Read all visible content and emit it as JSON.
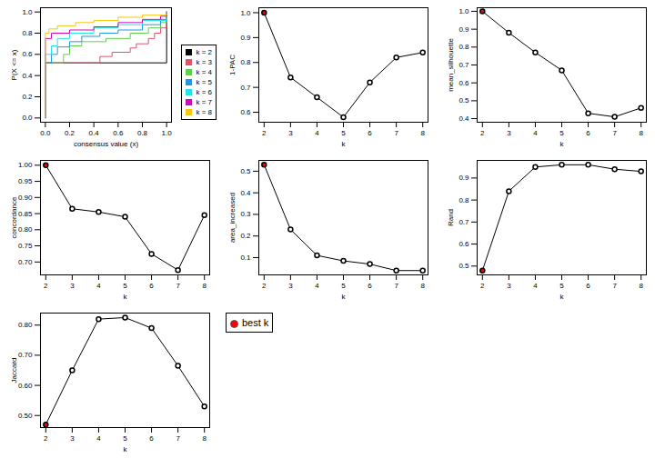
{
  "chart_data": [
    {
      "type": "step",
      "xlabel": "consensus value (x)",
      "ylabel": "P(X <= x)",
      "xlim": [
        -0.04,
        1.04
      ],
      "ylim": [
        -0.04,
        1.04
      ],
      "xticks": [
        {
          "value": 0,
          "label": "0.0"
        },
        {
          "value": 0.2,
          "label": "0.2"
        },
        {
          "value": 0.4,
          "label": "0.4"
        },
        {
          "value": 0.6,
          "label": "0.6"
        },
        {
          "value": 0.8,
          "label": "0.8"
        },
        {
          "value": 1,
          "label": "1.0"
        }
      ],
      "yticks": [
        {
          "value": 0,
          "label": "0.0"
        },
        {
          "value": 0.2,
          "label": "0.2"
        },
        {
          "value": 0.4,
          "label": "0.4"
        },
        {
          "value": 0.6,
          "label": "0.6"
        },
        {
          "value": 0.8,
          "label": "0.8"
        },
        {
          "value": 1,
          "label": "1.0"
        }
      ],
      "legend": "right",
      "series": [
        {
          "name": "k = 2",
          "color": "#000000",
          "x": [
            0,
            0,
            1,
            1
          ],
          "values": [
            0,
            0.52,
            0.52,
            1
          ]
        },
        {
          "name": "k = 3",
          "color": "#DF536B",
          "x": [
            0,
            0,
            0.45,
            0.55,
            0.7,
            0.75,
            0.85,
            0.9,
            0.95,
            1,
            1
          ],
          "values": [
            0,
            0.52,
            0.58,
            0.62,
            0.66,
            0.7,
            0.75,
            0.8,
            0.85,
            0.9,
            1
          ]
        },
        {
          "name": "k = 4",
          "color": "#61D04F",
          "x": [
            0,
            0,
            0.15,
            0.2,
            0.3,
            0.5,
            0.7,
            0.85,
            0.95,
            1
          ],
          "values": [
            0,
            0.52,
            0.6,
            0.68,
            0.72,
            0.75,
            0.8,
            0.85,
            0.9,
            1
          ]
        },
        {
          "name": "k = 5",
          "color": "#2297E6",
          "x": [
            0,
            0,
            0.05,
            0.1,
            0.2,
            0.3,
            0.45,
            0.6,
            0.8,
            0.95,
            1
          ],
          "values": [
            0,
            0.52,
            0.6,
            0.67,
            0.72,
            0.77,
            0.8,
            0.83,
            0.88,
            0.93,
            1
          ]
        },
        {
          "name": "k = 6",
          "color": "#28E2E5",
          "x": [
            0,
            0,
            0.05,
            0.1,
            0.2,
            0.4,
            0.6,
            0.8,
            1
          ],
          "values": [
            0,
            0.6,
            0.68,
            0.75,
            0.8,
            0.85,
            0.88,
            0.92,
            1
          ]
        },
        {
          "name": "k = 7",
          "color": "#CD0BBC",
          "x": [
            0,
            0,
            0.05,
            0.2,
            0.4,
            0.6,
            0.8,
            0.95,
            1
          ],
          "values": [
            0,
            0.75,
            0.8,
            0.83,
            0.86,
            0.9,
            0.93,
            0.96,
            1
          ]
        },
        {
          "name": "k = 8",
          "color": "#F5C710",
          "x": [
            0,
            0,
            0.03,
            0.1,
            0.25,
            0.4,
            0.6,
            0.8,
            1
          ],
          "values": [
            0,
            0.8,
            0.84,
            0.87,
            0.9,
            0.92,
            0.95,
            0.97,
            1
          ]
        }
      ]
    },
    {
      "type": "line",
      "xlabel": "k",
      "ylabel": "1-PAC",
      "marker": "circle",
      "color": "#000000",
      "x": [
        2,
        3,
        4,
        5,
        6,
        7,
        8
      ],
      "values": [
        1.0,
        0.74,
        0.66,
        0.58,
        0.72,
        0.82,
        0.84
      ],
      "colors": [
        "#FF0000",
        "#FFFFFF",
        "#FFFFFF",
        "#FFFFFF",
        "#FFFFFF",
        "#FFFFFF",
        "#FFFFFF"
      ],
      "xlim": [
        1.8,
        8.2
      ],
      "xticks": [
        2,
        3,
        4,
        5,
        6,
        7,
        8
      ],
      "ylim": [
        0.56,
        1.02
      ],
      "yticks": [
        0.6,
        0.7,
        0.8,
        0.9,
        {
          "value": 1,
          "label": "1.0"
        }
      ]
    },
    {
      "type": "line",
      "xlabel": "k",
      "ylabel": "mean_silhouette",
      "marker": "circle",
      "color": "#000000",
      "x": [
        2,
        3,
        4,
        5,
        6,
        7,
        8
      ],
      "values": [
        1.0,
        0.88,
        0.77,
        0.67,
        0.43,
        0.41,
        0.46
      ],
      "colors": [
        "#FF0000",
        "#FFFFFF",
        "#FFFFFF",
        "#FFFFFF",
        "#FFFFFF",
        "#FFFFFF",
        "#FFFFFF"
      ],
      "xlim": [
        1.8,
        8.2
      ],
      "xticks": [
        2,
        3,
        4,
        5,
        6,
        7,
        8
      ],
      "ylim": [
        0.38,
        1.02
      ],
      "yticks": [
        0.4,
        0.5,
        0.6,
        0.7,
        0.8,
        0.9,
        {
          "value": 1,
          "label": "1.0"
        }
      ]
    },
    {
      "type": "line",
      "xlabel": "k",
      "ylabel": "concordance",
      "marker": "circle",
      "color": "#000000",
      "x": [
        2,
        3,
        4,
        5,
        6,
        7,
        8
      ],
      "values": [
        1.0,
        0.865,
        0.855,
        0.84,
        0.725,
        0.675,
        0.845
      ],
      "colors": [
        "#FF0000",
        "#FFFFFF",
        "#FFFFFF",
        "#FFFFFF",
        "#FFFFFF",
        "#FFFFFF",
        "#FFFFFF"
      ],
      "xlim": [
        1.8,
        8.2
      ],
      "xticks": [
        2,
        3,
        4,
        5,
        6,
        7,
        8
      ],
      "ylim": [
        0.66,
        1.015
      ],
      "yticks": [
        {
          "value": 0.7,
          "label": "0.70"
        },
        {
          "value": 0.75,
          "label": "0.75"
        },
        {
          "value": 0.8,
          "label": "0.80"
        },
        {
          "value": 0.85,
          "label": "0.85"
        },
        {
          "value": 0.9,
          "label": "0.90"
        },
        {
          "value": 0.95,
          "label": "0.95"
        },
        {
          "value": 1,
          "label": "1.00"
        }
      ]
    },
    {
      "type": "line",
      "xlabel": "k",
      "ylabel": "area_increased",
      "marker": "circle",
      "color": "#000000",
      "x": [
        2,
        3,
        4,
        5,
        6,
        7,
        8
      ],
      "values": [
        0.53,
        0.23,
        0.11,
        0.085,
        0.07,
        0.04,
        0.04
      ],
      "colors": [
        "#FF0000",
        "#FFFFFF",
        "#FFFFFF",
        "#FFFFFF",
        "#FFFFFF",
        "#FFFFFF",
        "#FFFFFF"
      ],
      "xlim": [
        1.8,
        8.2
      ],
      "xticks": [
        2,
        3,
        4,
        5,
        6,
        7,
        8
      ],
      "ylim": [
        0.02,
        0.55
      ],
      "yticks": [
        0.1,
        0.2,
        0.3,
        0.4,
        0.5
      ]
    },
    {
      "type": "line",
      "xlabel": "k",
      "ylabel": "Rand",
      "marker": "circle",
      "color": "#000000",
      "x": [
        2,
        3,
        4,
        5,
        6,
        7,
        8
      ],
      "values": [
        0.48,
        0.84,
        0.95,
        0.96,
        0.96,
        0.94,
        0.93
      ],
      "colors": [
        "#FF0000",
        "#FFFFFF",
        "#FFFFFF",
        "#FFFFFF",
        "#FFFFFF",
        "#FFFFFF",
        "#FFFFFF"
      ],
      "xlim": [
        1.8,
        8.2
      ],
      "xticks": [
        2,
        3,
        4,
        5,
        6,
        7,
        8
      ],
      "ylim": [
        0.46,
        0.98
      ],
      "yticks": [
        0.5,
        0.6,
        0.7,
        0.8,
        0.9
      ]
    },
    {
      "type": "line",
      "xlabel": "k",
      "ylabel": "Jaccard",
      "marker": "circle",
      "color": "#000000",
      "x": [
        2,
        3,
        4,
        5,
        6,
        7,
        8
      ],
      "values": [
        0.47,
        0.65,
        0.82,
        0.825,
        0.79,
        0.665,
        0.53
      ],
      "colors": [
        "#FF0000",
        "#FFFFFF",
        "#FFFFFF",
        "#FFFFFF",
        "#FFFFFF",
        "#FFFFFF",
        "#FFFFFF"
      ],
      "xlim": [
        1.8,
        8.2
      ],
      "xticks": [
        2,
        3,
        4,
        5,
        6,
        7,
        8
      ],
      "ylim": [
        0.46,
        0.84
      ],
      "yticks": [
        {
          "value": 0.5,
          "label": "0.50"
        },
        {
          "value": 0.6,
          "label": "0.60"
        },
        {
          "value": 0.7,
          "label": "0.70"
        },
        {
          "value": 0.8,
          "label": "0.80"
        }
      ]
    },
    {
      "type": "legend",
      "series": [
        {
          "name": "best k",
          "color": "#FF0000",
          "marker": "circle"
        }
      ]
    }
  ]
}
